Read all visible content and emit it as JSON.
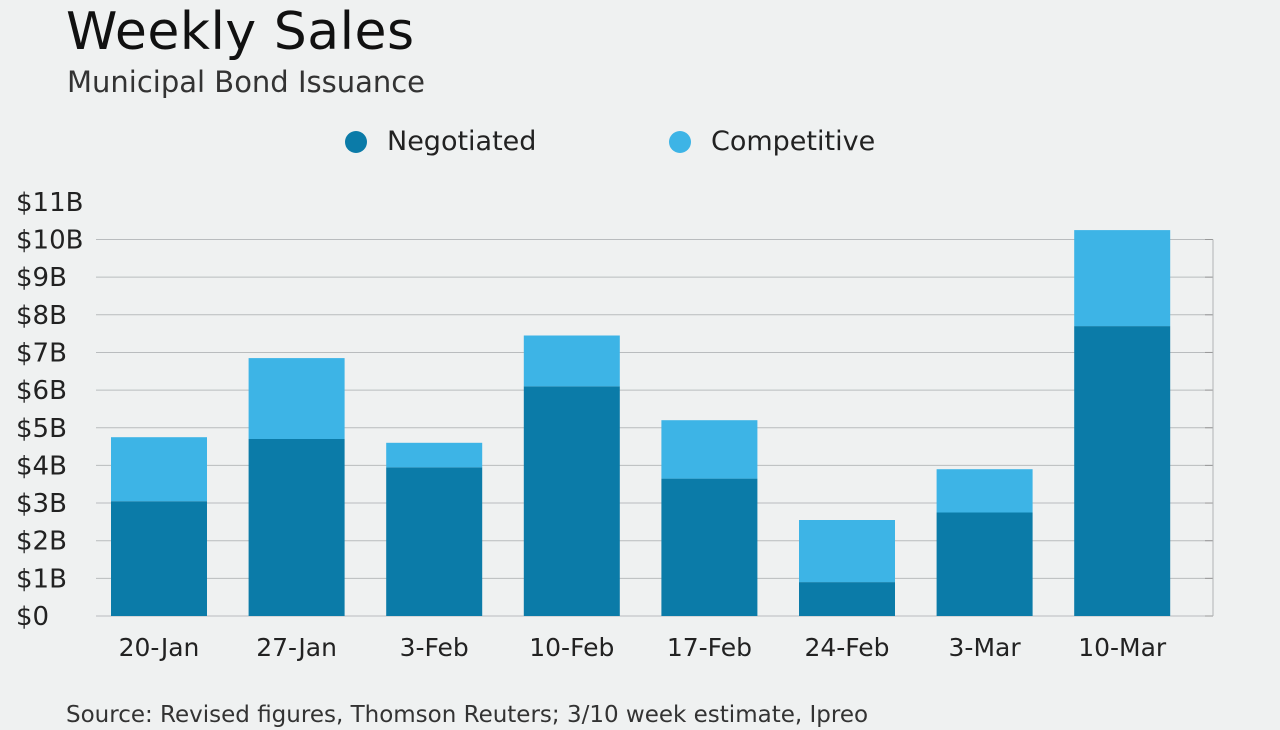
{
  "header": {
    "title": "Weekly Sales",
    "subtitle": "Municipal Bond Issuance"
  },
  "footer": {
    "source": "Source: Revised figures, Thomson Reuters; 3/10 week estimate, Ipreo"
  },
  "colors": {
    "negotiated": "#0b7ba8",
    "competitive": "#3db4e6",
    "grid": "#b9bcbe",
    "background": "#eff1f1"
  },
  "chart_data": {
    "type": "bar",
    "stacked": true,
    "title": "Weekly Sales",
    "subtitle": "Municipal Bond Issuance",
    "xlabel": "",
    "ylabel": "",
    "ylim": [
      0,
      11
    ],
    "yunit": "B",
    "yticks": [
      "$0",
      "$1B",
      "$2B",
      "$3B",
      "$4B",
      "$5B",
      "$6B",
      "$7B",
      "$8B",
      "$9B",
      "$10B",
      "$11B"
    ],
    "categories": [
      "20-Jan",
      "27-Jan",
      "3-Feb",
      "10-Feb",
      "17-Feb",
      "24-Feb",
      "3-Mar",
      "10-Mar"
    ],
    "series": [
      {
        "name": "Negotiated",
        "color": "#0b7ba8",
        "values": [
          3.05,
          4.7,
          3.95,
          6.1,
          3.65,
          0.9,
          2.75,
          7.7
        ]
      },
      {
        "name": "Competitive",
        "color": "#3db4e6",
        "values": [
          1.7,
          2.15,
          0.65,
          1.35,
          1.55,
          1.65,
          1.15,
          2.55
        ]
      }
    ],
    "legend_position": "top",
    "grid": true
  }
}
